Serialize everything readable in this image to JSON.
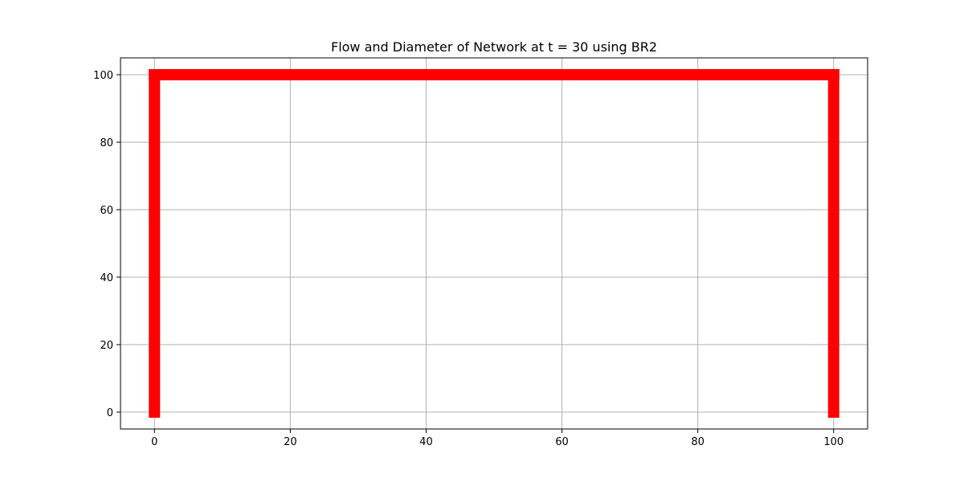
{
  "chart_data": {
    "type": "line",
    "title": "Flow and Diameter of Network at t = 30 using BR2",
    "xlabel": "",
    "ylabel": "",
    "xlim": [
      -5,
      105
    ],
    "ylim": [
      -5,
      105
    ],
    "xticks": [
      0,
      20,
      40,
      60,
      80,
      100
    ],
    "yticks": [
      0,
      20,
      40,
      60,
      80,
      100
    ],
    "grid": true,
    "segments": [
      {
        "x": [
          0,
          0
        ],
        "y": [
          0,
          100
        ],
        "color": "#ff0000"
      },
      {
        "x": [
          0,
          100
        ],
        "y": [
          100,
          100
        ],
        "color": "#ff0000"
      },
      {
        "x": [
          100,
          100
        ],
        "y": [
          100,
          0
        ],
        "color": "#ff0000"
      }
    ]
  }
}
